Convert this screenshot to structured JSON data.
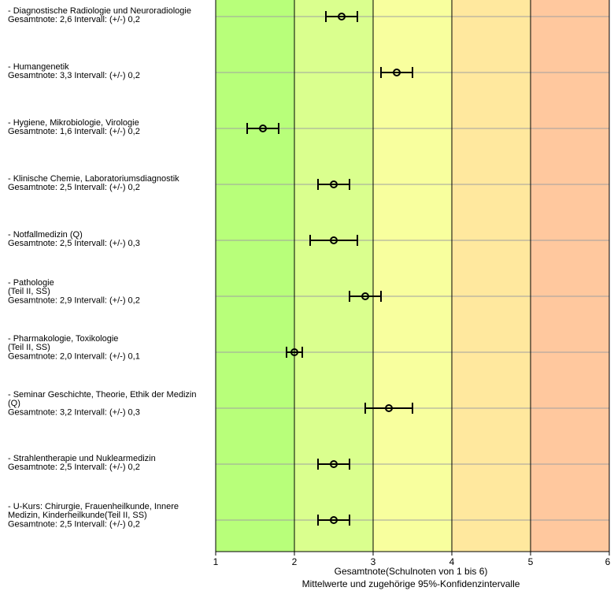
{
  "chart_data": {
    "type": "errorbar",
    "orientation": "horizontal",
    "xlim": [
      1,
      6
    ],
    "x_ticks": [
      "1",
      "2",
      "3",
      "4",
      "5",
      "6"
    ],
    "xlabel": "Gesamtnote(Schulnoten von 1 bis 6)",
    "xlabel2": "Mittelwerte und zugehörige 95%-Konfidenzintervalle",
    "grid": "horizontal-and-vertical",
    "bands": [
      {
        "from": 1,
        "to": 2,
        "color": "#b8ff7a"
      },
      {
        "from": 2,
        "to": 3,
        "color": "#daff8e"
      },
      {
        "from": 3,
        "to": 4,
        "color": "#f8ff9e"
      },
      {
        "from": 4,
        "to": 5,
        "color": "#ffe89e"
      },
      {
        "from": 5,
        "to": 6,
        "color": "#ffc89e"
      }
    ],
    "items": [
      {
        "label_lines": [
          "- Diagnostische Radiologie und Neuroradiologie",
          "Gesamtnote: 2,6 Intervall: (+/-) 0,2"
        ],
        "mean": 2.6,
        "ci": 0.2
      },
      {
        "label_lines": [
          "- Humangenetik",
          "Gesamtnote: 3,3 Intervall: (+/-) 0,2"
        ],
        "mean": 3.3,
        "ci": 0.2
      },
      {
        "label_lines": [
          "- Hygiene, Mikrobiologie, Virologie",
          "Gesamtnote: 1,6 Intervall: (+/-) 0,2"
        ],
        "mean": 1.6,
        "ci": 0.2
      },
      {
        "label_lines": [
          "- Klinische Chemie, Laboratoriumsdiagnostik",
          "Gesamtnote: 2,5 Intervall: (+/-) 0,2"
        ],
        "mean": 2.5,
        "ci": 0.2
      },
      {
        "label_lines": [
          "- Notfallmedizin (Q)",
          "Gesamtnote: 2,5 Intervall: (+/-) 0,3"
        ],
        "mean": 2.5,
        "ci": 0.3
      },
      {
        "label_lines": [
          "- Pathologie",
          "(Teil II, SS)",
          "Gesamtnote: 2,9 Intervall: (+/-) 0,2"
        ],
        "mean": 2.9,
        "ci": 0.2
      },
      {
        "label_lines": [
          "- Pharmakologie, Toxikologie",
          "(Teil II, SS)",
          "Gesamtnote: 2,0 Intervall: (+/-) 0,1"
        ],
        "mean": 2.0,
        "ci": 0.1
      },
      {
        "label_lines": [
          "- Seminar Geschichte, Theorie, Ethik der Medizin",
          "(Q)",
          "Gesamtnote: 3,2 Intervall: (+/-) 0,3"
        ],
        "mean": 3.2,
        "ci": 0.3
      },
      {
        "label_lines": [
          "- Strahlentherapie und Nuklearmedizin",
          "Gesamtnote: 2,5 Intervall: (+/-) 0,2"
        ],
        "mean": 2.5,
        "ci": 0.2
      },
      {
        "label_lines": [
          "- U-Kurs: Chirurgie, Frauenheilkunde, Innere",
          "Medizin, Kinderheilkunde(Teil II, SS)",
          "Gesamtnote: 2,5 Intervall: (+/-) 0,2"
        ],
        "mean": 2.5,
        "ci": 0.2
      }
    ]
  }
}
